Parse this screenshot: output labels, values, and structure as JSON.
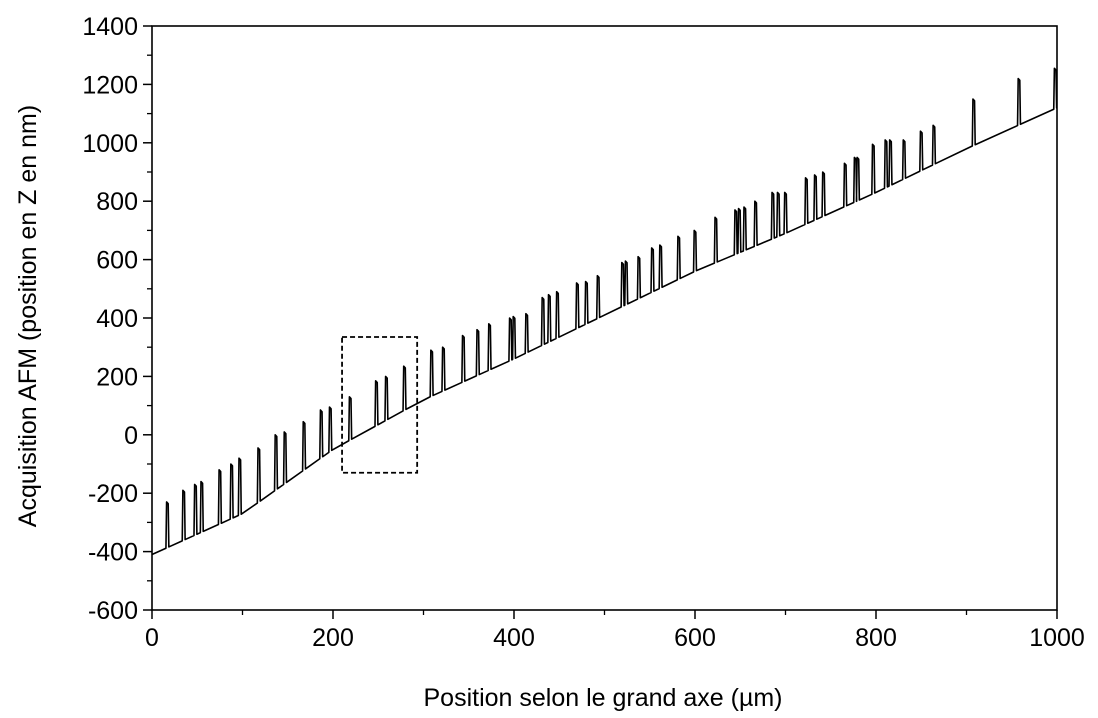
{
  "chart_data": {
    "type": "line",
    "title": "",
    "xlabel": "Position selon le grand axe (µm)",
    "ylabel": "Acquisition AFM (position en Z en nm)",
    "xlim": [
      0,
      1000
    ],
    "ylim": [
      -600,
      1400
    ],
    "x_ticks": [
      0,
      200,
      400,
      600,
      800,
      1000
    ],
    "y_ticks": [
      -600,
      -400,
      -200,
      0,
      200,
      400,
      600,
      800,
      1000,
      1200,
      1400
    ],
    "x_tick_labels": [
      "0",
      "200",
      "400",
      "600",
      "800",
      "1000"
    ],
    "y_tick_labels": [
      "-600",
      "-400",
      "-200",
      "0",
      "200",
      "400",
      "600",
      "800",
      "1000",
      "1200",
      "1400"
    ],
    "grid": false,
    "legend": "none",
    "line_color": "#000000",
    "baseline": {
      "x": [
        0,
        100,
        200,
        300,
        400,
        500,
        600,
        700,
        800,
        900,
        1000
      ],
      "y": [
        -410,
        -270,
        -50,
        120,
        260,
        410,
        560,
        690,
        830,
        980,
        1120
      ]
    },
    "peaks": {
      "x": [
        17,
        35,
        48,
        55,
        75,
        88,
        97,
        118,
        137,
        147,
        168,
        187,
        197,
        219,
        248,
        259,
        279,
        309,
        322,
        344,
        360,
        373,
        396,
        400,
        414,
        432,
        439,
        448,
        470,
        480,
        493,
        520,
        524,
        538,
        553,
        562,
        582,
        600,
        623,
        645,
        649,
        655,
        667,
        686,
        692,
        700,
        723,
        733,
        742,
        766,
        777,
        780,
        797,
        811,
        816,
        831,
        850,
        864,
        908,
        958,
        998
      ],
      "y": [
        -230,
        -190,
        -170,
        -160,
        -120,
        -100,
        -80,
        -45,
        0,
        10,
        45,
        85,
        95,
        130,
        185,
        200,
        235,
        290,
        300,
        340,
        360,
        380,
        400,
        405,
        415,
        470,
        480,
        490,
        520,
        525,
        545,
        590,
        595,
        610,
        640,
        650,
        680,
        700,
        745,
        770,
        775,
        780,
        800,
        830,
        830,
        830,
        880,
        890,
        900,
        930,
        950,
        950,
        995,
        1010,
        1010,
        1010,
        1040,
        1060,
        1150,
        1220,
        1255
      ]
    },
    "annotation_box": {
      "style": "dashed",
      "x_range": [
        210,
        293
      ],
      "y_range": [
        -130,
        335
      ]
    }
  }
}
